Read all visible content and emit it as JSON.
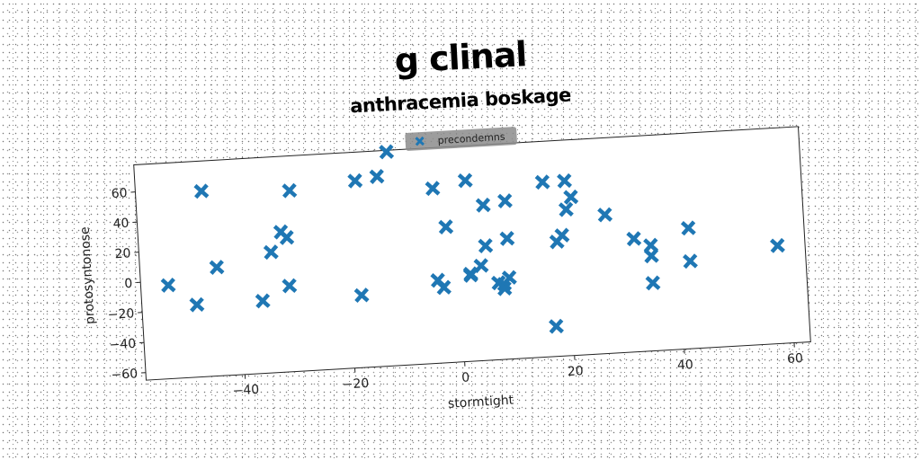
{
  "chart_data": {
    "type": "scatter",
    "title": "g clinal",
    "subtitle": "anthracemia boskage",
    "xlabel": "stormtight",
    "ylabel": "protosyntonose",
    "xlim": [
      -58,
      63
    ],
    "ylim": [
      -65,
      78
    ],
    "xticks": [
      -40,
      -20,
      0,
      20,
      40,
      60
    ],
    "yticks": [
      -60,
      -40,
      -20,
      0,
      20,
      40,
      60
    ],
    "grid": false,
    "legend_position": "top-center",
    "series": [
      {
        "name": "precondemns",
        "color": "#1f77b4",
        "marker": "x",
        "points": [
          [
            -12,
            77
          ],
          [
            -14,
            61
          ],
          [
            -18,
            59
          ],
          [
            -46,
            58
          ],
          [
            -30,
            55
          ],
          [
            -4,
            51
          ],
          [
            2,
            55
          ],
          [
            16,
            51
          ],
          [
            20,
            51
          ],
          [
            9,
            40
          ],
          [
            21,
            40
          ],
          [
            5,
            38
          ],
          [
            20,
            32
          ],
          [
            27,
            27
          ],
          [
            -2,
            25
          ],
          [
            -32,
            28
          ],
          [
            -31,
            24
          ],
          [
            -34,
            15
          ],
          [
            9,
            15
          ],
          [
            19,
            15
          ],
          [
            18,
            11
          ],
          [
            5,
            11
          ],
          [
            32,
            10
          ],
          [
            -44,
            7
          ],
          [
            35,
            5
          ],
          [
            42,
            15
          ],
          [
            -53,
            -3
          ],
          [
            58,
            0
          ],
          [
            35,
            -2
          ],
          [
            4,
            -2
          ],
          [
            -31,
            -8
          ],
          [
            2,
            -7
          ],
          [
            2,
            -8
          ],
          [
            -4,
            -10
          ],
          [
            42,
            -7
          ],
          [
            9,
            -11
          ],
          [
            -3,
            -15
          ],
          [
            7,
            -14
          ],
          [
            8,
            -15
          ],
          [
            -48,
            -17
          ],
          [
            -36,
            -17
          ],
          [
            -18,
            -17
          ],
          [
            8,
            -18
          ],
          [
            35,
            -20
          ],
          [
            17,
            -45
          ]
        ]
      }
    ]
  }
}
